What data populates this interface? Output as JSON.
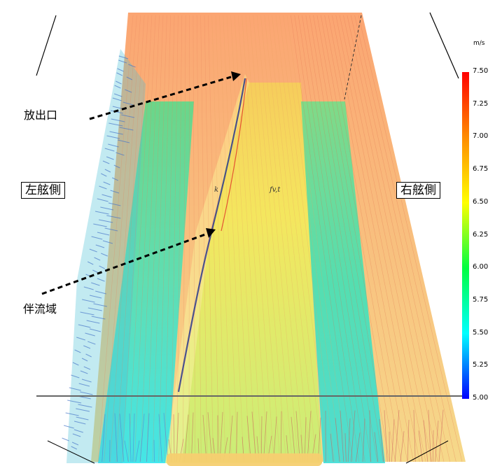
{
  "labels": {
    "outlet": "放出口",
    "left_side": "左舷側",
    "right_side": "右舷側",
    "wake_region": "伴流域",
    "mid_left": "k",
    "mid_center": "fv,t"
  },
  "chart_data": {
    "type": "vector-field",
    "unit": "m/s",
    "colorbar": {
      "min": 5.0,
      "max": 7.5,
      "ticks": [
        "7.50",
        "7.25",
        "7.00",
        "6.75",
        "6.50",
        "6.25",
        "6.00",
        "5.75",
        "5.50",
        "5.25",
        "5.00"
      ],
      "colors": [
        "#ff0000",
        "#ff8000",
        "#ffff00",
        "#00ff00",
        "#00ffff",
        "#0000ff"
      ]
    }
  }
}
